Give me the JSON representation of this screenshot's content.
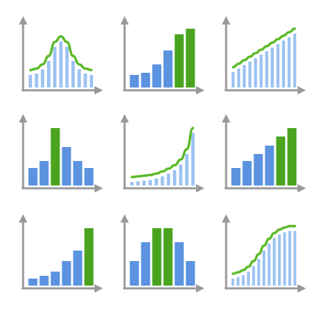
{
  "icons": [
    {
      "style": "thin",
      "line": true,
      "values": [
        18,
        20,
        26,
        38,
        58,
        66,
        58,
        38,
        26,
        20,
        18
      ]
    },
    {
      "style": "wide",
      "values": [
        18,
        21,
        33,
        53,
        76,
        84
      ],
      "green": [
        4,
        5
      ]
    },
    {
      "style": "thin",
      "line": true,
      "values": [
        22,
        27,
        32,
        37,
        42,
        47,
        52,
        57,
        62,
        67,
        72,
        77
      ]
    },
    {
      "style": "wide",
      "values": [
        25,
        35,
        82,
        55,
        35,
        25
      ],
      "green": [
        2
      ]
    },
    {
      "style": "thin",
      "line": true,
      "values": [
        5,
        6,
        7,
        8,
        10,
        13,
        17,
        22,
        30,
        45,
        75
      ]
    },
    {
      "style": "wide",
      "values": [
        25,
        35,
        45,
        57,
        70,
        82
      ],
      "green": [
        4,
        5
      ]
    },
    {
      "style": "wide",
      "values": [
        10,
        14,
        20,
        35,
        50,
        82
      ],
      "green": [
        5
      ]
    },
    {
      "style": "wide",
      "values": [
        35,
        62,
        82,
        82,
        62,
        35
      ],
      "green": [
        2,
        3
      ]
    },
    {
      "style": "thin",
      "line": true,
      "values": [
        10,
        12,
        15,
        20,
        28,
        38,
        50,
        60,
        68,
        73,
        76,
        78,
        78
      ]
    }
  ]
}
